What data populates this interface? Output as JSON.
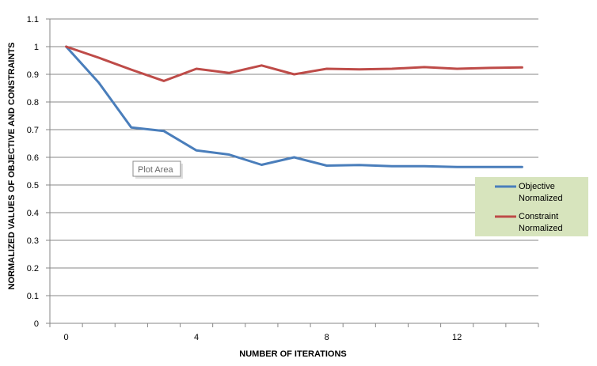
{
  "chart_data": {
    "type": "line",
    "xlabel": "NUMBER OF ITERATIONS",
    "ylabel": "NORMALIZED VALUES OF OBJECTIVE AND CONSTRAINTS",
    "xlim": [
      -0.5,
      14.5
    ],
    "ylim": [
      0,
      1.1
    ],
    "x": [
      0,
      1,
      2,
      3,
      4,
      5,
      6,
      7,
      8,
      9,
      10,
      11,
      12,
      13,
      14
    ],
    "x_ticks": [
      {
        "value": 0,
        "label": "0"
      },
      {
        "value": 4,
        "label": "4"
      },
      {
        "value": 8,
        "label": "8"
      },
      {
        "value": 12,
        "label": "12"
      }
    ],
    "y_ticks": [
      {
        "value": 0,
        "label": "0"
      },
      {
        "value": 0.1,
        "label": "0.1"
      },
      {
        "value": 0.2,
        "label": "0.2"
      },
      {
        "value": 0.3,
        "label": "0.3"
      },
      {
        "value": 0.4,
        "label": "0.4"
      },
      {
        "value": 0.5,
        "label": "0.5"
      },
      {
        "value": 0.6,
        "label": "0.6"
      },
      {
        "value": 0.7,
        "label": "0.7"
      },
      {
        "value": 0.8,
        "label": "0.8"
      },
      {
        "value": 0.9,
        "label": "0.9"
      },
      {
        "value": 1,
        "label": "1"
      },
      {
        "value": 1.1,
        "label": "1.1"
      }
    ],
    "grid": "horizontal",
    "legend_position": "right",
    "series": [
      {
        "name": "Objective Normalized",
        "legend_lines": [
          "Objective",
          "Normalized"
        ],
        "color": "#4a7ebb",
        "values": [
          1.0,
          0.87,
          0.708,
          0.695,
          0.625,
          0.61,
          0.573,
          0.6,
          0.57,
          0.572,
          0.568,
          0.568,
          0.565,
          0.565,
          0.565
        ]
      },
      {
        "name": "Constraint Normalized",
        "legend_lines": [
          "Constraint",
          "Normalized"
        ],
        "color": "#be4b48",
        "values": [
          1.0,
          0.96,
          0.917,
          0.876,
          0.92,
          0.905,
          0.932,
          0.9,
          0.92,
          0.918,
          0.92,
          0.926,
          0.92,
          0.923,
          0.925
        ]
      }
    ],
    "annotation": "Plot Area",
    "legend_background": "#d7e4bd"
  }
}
